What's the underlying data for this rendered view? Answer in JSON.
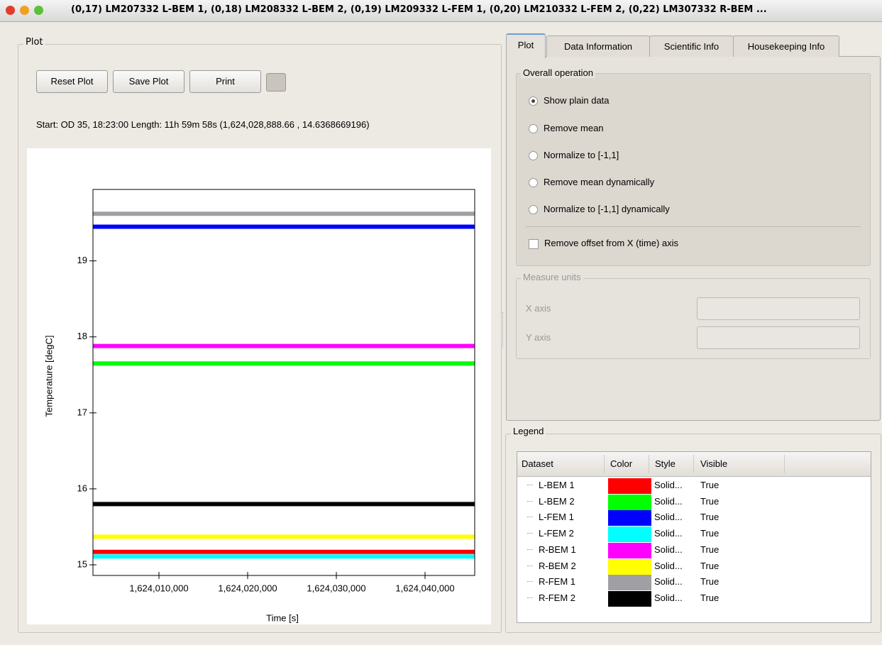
{
  "window": {
    "title": "(0,17) LM207332 L-BEM 1, (0,18) LM208332 L-BEM 2, (0,19) LM209332 L-FEM 1, (0,20) LM210332 L-FEM 2, (0,22) LM307332 R-BEM ..."
  },
  "plot_panel": {
    "title": "Plot",
    "buttons": [
      "Reset Plot",
      "Save Plot",
      "Print"
    ],
    "info": "Start: OD 35, 18:23:00  Length: 11h 59m 58s  (1,624,028,888.66 , 14.6368669196)"
  },
  "chart_data": {
    "type": "line",
    "x_label": "Time [s]",
    "y_label": "Temperature [degC]",
    "x": [
      1624002560,
      1624045600
    ],
    "series": [
      {
        "name": "L-BEM 1",
        "color": "#ff0000",
        "values": [
          15.17,
          15.17
        ]
      },
      {
        "name": "L-BEM 2",
        "color": "#00ff00",
        "values": [
          17.65,
          17.65
        ]
      },
      {
        "name": "L-FEM 1",
        "color": "#0000ff",
        "values": [
          19.45,
          19.45
        ]
      },
      {
        "name": "L-FEM 2",
        "color": "#00ffff",
        "values": [
          15.11,
          15.11
        ]
      },
      {
        "name": "R-BEM 1",
        "color": "#ff00ff",
        "values": [
          17.88,
          17.88
        ]
      },
      {
        "name": "R-BEM 2",
        "color": "#ffff00",
        "values": [
          15.37,
          15.37
        ]
      },
      {
        "name": "R-FEM 1",
        "color": "#a0a0a4",
        "values": [
          19.62,
          19.62
        ]
      },
      {
        "name": "R-FEM 2",
        "color": "#000000",
        "values": [
          15.8,
          15.8
        ]
      }
    ],
    "xlim": [
      1624002560,
      1624045600
    ],
    "xticks": [
      {
        "value": 1624010000,
        "label": "1,624,010,000"
      },
      {
        "value": 1624020000,
        "label": "1,624,020,000"
      },
      {
        "value": 1624030000,
        "label": "1,624,030,000"
      },
      {
        "value": 1624040000,
        "label": "1,624,040,000"
      }
    ],
    "ylim": [
      14.86,
      19.94
    ],
    "yticks": [
      15,
      16,
      17,
      18,
      19
    ]
  },
  "tabs": [
    "Plot",
    "Data Information",
    "Scientific Info",
    "Housekeeping Info"
  ],
  "overall_operation": {
    "title": "Overall operation",
    "options": [
      "Show plain data",
      "Remove mean",
      "Normalize to [-1,1]",
      "Remove mean dynamically",
      "Normalize to [-1,1] dynamically"
    ],
    "checkbox": "Remove offset from X (time) axis"
  },
  "measure_units": {
    "title": "Measure units",
    "x_axis": "X axis",
    "y_axis": "Y axis"
  },
  "legend": {
    "title": "Legend",
    "columns": [
      "Dataset",
      "Color",
      "Style",
      "Visible"
    ],
    "rows": [
      [
        "Solid...",
        "True"
      ],
      [
        "Solid...",
        "True"
      ],
      [
        "Solid...",
        "True"
      ],
      [
        "Solid...",
        "True"
      ],
      [
        "Solid...",
        "True"
      ],
      [
        "Solid...",
        "True"
      ],
      [
        "Solid...",
        "True"
      ],
      [
        "Solid...",
        "True"
      ]
    ]
  }
}
